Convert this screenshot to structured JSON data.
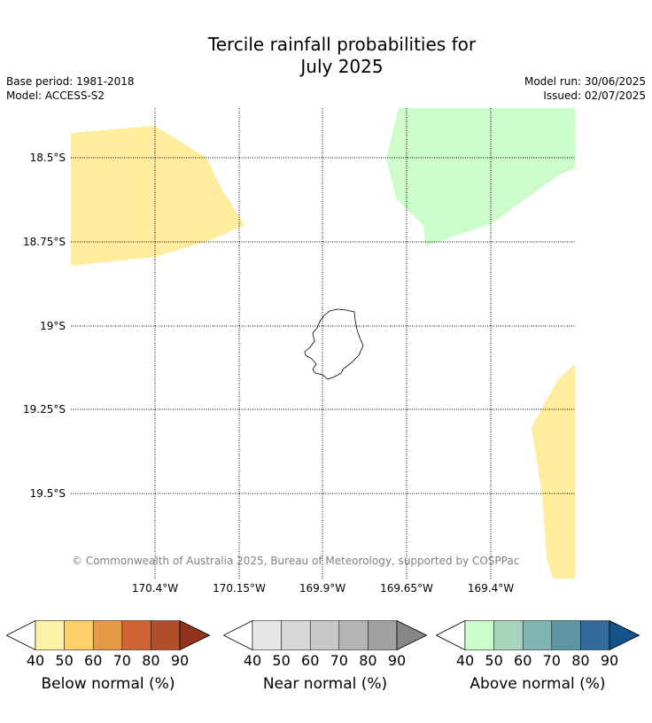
{
  "title_line1": "Tercile rainfall probabilities for",
  "title_line2": "July 2025",
  "base_period": "Base period: 1981-2018",
  "model": "Model: ACCESS-S2",
  "model_run": "Model run: 30/06/2025",
  "issued": "Issued: 02/07/2025",
  "copyright": "© Commonwealth of Australia 2025, Bureau of Meteorology, supported by COSPPac",
  "lat_labels": [
    "18.5°S",
    "18.75°S",
    "19°S",
    "19.25°S",
    "19.5°S"
  ],
  "lon_labels": [
    "170.4°W",
    "170.15°W",
    "169.9°W",
    "169.65°W",
    "169.4°W"
  ],
  "colorbars": [
    {
      "label": "Below normal (%)",
      "ticks": [
        "40",
        "50",
        "60",
        "70",
        "80",
        "90"
      ],
      "colors": [
        "#fff0a8",
        "#fdd06a",
        "#e59a47",
        "#ce6433",
        "#b14e2a",
        "#923320"
      ]
    },
    {
      "label": "Near normal (%)",
      "ticks": [
        "40",
        "50",
        "60",
        "70",
        "80",
        "90"
      ],
      "colors": [
        "#e6e6e6",
        "#d8d8d8",
        "#c8c8c8",
        "#b4b4b4",
        "#a2a2a2",
        "#878787"
      ]
    },
    {
      "label": "Above normal (%)",
      "ticks": [
        "40",
        "50",
        "60",
        "70",
        "80",
        "90"
      ],
      "colors": [
        "#ccfccb",
        "#a5d6bb",
        "#7fb4b0",
        "#5c96a2",
        "#336a9c",
        "#12538a"
      ]
    }
  ],
  "regions": [
    {
      "category": "below-normal",
      "probability_band": "40-50",
      "color": "#ffec9c"
    },
    {
      "category": "above-normal",
      "probability_band": "40-50",
      "color": "#ccfccb"
    },
    {
      "category": "below-normal",
      "probability_band": "40-50",
      "color": "#ffec9c"
    }
  ]
}
